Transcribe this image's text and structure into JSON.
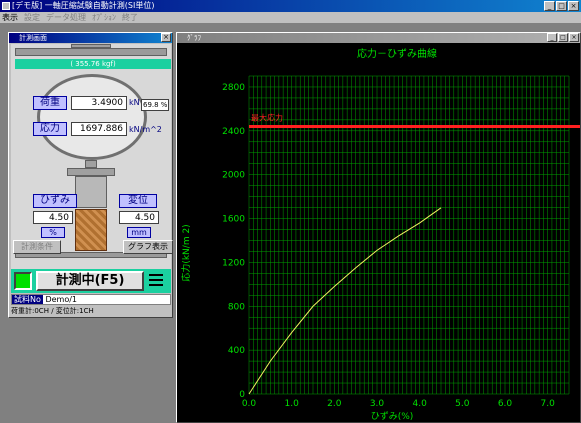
{
  "app": {
    "title": "[デモ版] 一軸圧縮試験自動計測(SI単位)",
    "window_buttons": [
      "_",
      "□",
      "×"
    ]
  },
  "menu": {
    "items": [
      "表示",
      "設定",
      "データ処理",
      "ｵﾌﾟｼｮﾝ",
      "終了"
    ]
  },
  "measure_window": {
    "title": "計測画面",
    "load_banner": "( 355.76 kgf)",
    "load_label": "荷重",
    "load_value": "3.4900",
    "load_unit": "kN",
    "load_pct": "69.8 %",
    "stress_label": "応力",
    "stress_value": "1697.886",
    "stress_unit": "kN/m^2",
    "strain_label": "ひずみ",
    "strain_value": "4.50",
    "strain_unit": "%",
    "disp_label": "変位",
    "disp_value": "4.50",
    "disp_unit": "mm",
    "cond_button": "計測条件",
    "graph_button": "グラフ表示",
    "measure_button": "計測中(F5)",
    "sample_tag": "試料No",
    "sample_value": "Demo/1",
    "channel_info": "荷重計:0CH / 変位計:1CH"
  },
  "graph_window": {
    "title": "ｸﾞﾗﾌ"
  },
  "chart_data": {
    "type": "line",
    "title": "応力－ひずみ曲線",
    "xlabel": "ひずみ(%)",
    "ylabel": "応力(kN/m 2)",
    "xlim": [
      0,
      7.5
    ],
    "ylim": [
      0,
      2900
    ],
    "xticks": [
      "0.0",
      "1.0",
      "2.0",
      "3.0",
      "4.0",
      "5.0",
      "6.0",
      "7.0"
    ],
    "yticks": [
      "0",
      "400",
      "800",
      "1200",
      "1600",
      "2000",
      "2400",
      "2800"
    ],
    "grid": true,
    "reference_line": {
      "label": "最大応力",
      "value": 2440,
      "color": "#ff2020"
    },
    "series": [
      {
        "color": "#f0f060",
        "x": [
          0,
          0.5,
          1.0,
          1.5,
          2.0,
          2.5,
          3.0,
          3.5,
          4.0,
          4.5
        ],
        "y": [
          0,
          300,
          560,
          800,
          980,
          1150,
          1310,
          1440,
          1560,
          1698
        ]
      }
    ],
    "colors": {
      "background": "#000000",
      "grid": "#00a000",
      "axis_text": "#00e000",
      "title": "#00e000"
    }
  }
}
